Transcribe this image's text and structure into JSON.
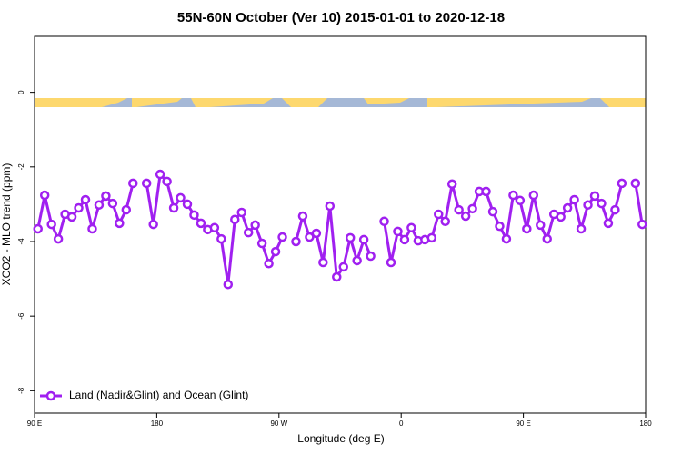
{
  "chart_data": {
    "type": "line",
    "title": "55N-60N October (Ver 10)   2015-01-01 to 2020-12-18",
    "x_label": "Longitude (deg E)",
    "y_label": "XCO2 - MLO trend (ppm)",
    "xlim": [
      90,
      540
    ],
    "xticks": [
      {
        "value": 90,
        "label": "90 E"
      },
      180,
      {
        "value": 270,
        "label": "90 W"
      },
      {
        "value": 360,
        "label": "0"
      },
      {
        "value": 450,
        "label": "90 E"
      },
      {
        "value": 540,
        "label": "180"
      }
    ],
    "ylim": [
      -8.6,
      1.5
    ],
    "yticks": [
      0,
      -2,
      -4,
      -6,
      -8
    ],
    "legend": "bottom-left",
    "x": [
      92.5,
      97.5,
      102.5,
      107.5,
      112.5,
      117.5,
      122.5,
      127.5,
      132.5,
      137.5,
      142.5,
      147.5,
      152.5,
      157.5,
      162.5,
      167.5,
      172.5,
      177.5,
      182.5,
      187.5,
      192.5,
      197.5,
      202.5,
      207.5,
      212.5,
      217.5,
      222.5,
      227.5,
      232.5,
      237.5,
      242.5,
      247.5,
      252.5,
      257.5,
      262.5,
      267.5,
      272.5,
      277.5,
      282.5,
      287.5,
      292.5,
      297.5,
      302.5,
      307.5,
      312.5,
      317.5,
      322.5,
      327.5,
      332.5,
      337.5,
      342.5,
      347.5,
      352.5,
      357.5,
      362.5,
      367.5,
      372.5,
      377.5,
      382.5,
      387.5,
      392.5,
      397.5,
      402.5,
      407.5,
      412.5,
      417.5,
      422.5,
      427.5,
      432.5,
      437.5,
      442.5,
      447.5,
      452.5,
      457.5,
      462.5,
      467.5,
      472.5,
      477.5,
      482.5,
      487.5,
      492.5,
      497.5,
      502.5,
      507.5,
      512.5,
      517.5,
      522.5,
      527.5,
      532.5,
      537.5
    ],
    "series": [
      {
        "name": "Land (Nadir&Glint) and Ocean (Glint)",
        "color": "#a020f0",
        "values": [
          -3.66,
          -2.76,
          -3.54,
          -3.93,
          -3.27,
          -3.34,
          -3.1,
          -2.88,
          -3.66,
          -3.02,
          -2.78,
          -2.98,
          -3.51,
          -3.15,
          -2.44,
          null,
          -2.44,
          -3.54,
          -2.2,
          -2.39,
          -3.1,
          -2.83,
          -3.0,
          -3.29,
          -3.51,
          -3.68,
          -3.63,
          -3.93,
          -5.15,
          -3.41,
          -3.22,
          -3.76,
          -3.56,
          -4.05,
          -4.59,
          -4.27,
          -3.88,
          null,
          -4.0,
          -3.32,
          -3.88,
          -3.78,
          -4.56,
          -3.05,
          -4.95,
          -4.68,
          -3.9,
          -4.51,
          -3.95,
          -4.39,
          null,
          -3.46,
          -4.56,
          -3.73,
          -3.95,
          -3.63,
          -3.98,
          -3.95,
          -3.9,
          -3.27,
          -3.46,
          -2.46,
          -3.15,
          -3.32,
          -3.12,
          -2.66,
          -2.66,
          -3.2,
          -3.59,
          -3.93,
          -2.76,
          -2.9,
          -3.66,
          -2.76,
          -3.56,
          -3.93,
          -3.27,
          -3.34,
          -3.1,
          -2.88,
          -3.66,
          -3.02,
          -2.78,
          -2.98,
          -3.51,
          -3.15,
          -2.44,
          null,
          -2.44,
          -3.54
        ]
      }
    ]
  }
}
